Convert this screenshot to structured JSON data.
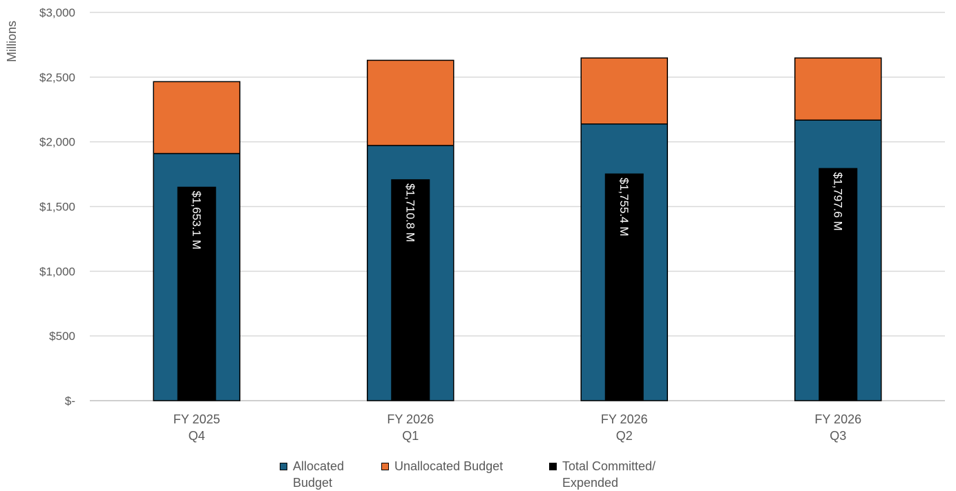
{
  "chart_data": {
    "type": "bar",
    "ylabel": "Millions",
    "ylim": [
      0,
      3000
    ],
    "yticks": [
      {
        "value": 0,
        "label": "$-"
      },
      {
        "value": 500,
        "label": "$500"
      },
      {
        "value": 1000,
        "label": "$1,000"
      },
      {
        "value": 1500,
        "label": "$1,500"
      },
      {
        "value": 2000,
        "label": "$2,000"
      },
      {
        "value": 2500,
        "label": "$2,500"
      },
      {
        "value": 3000,
        "label": "$3,000"
      }
    ],
    "categories": [
      [
        "FY 2025",
        "Q4"
      ],
      [
        "FY 2026",
        "Q1"
      ],
      [
        "FY 2026",
        "Q2"
      ],
      [
        "FY 2026",
        "Q3"
      ]
    ],
    "series": [
      {
        "name": "Allocated Budget",
        "legend_lines": [
          "Allocated",
          "Budget"
        ],
        "color": "#1a5f82",
        "stack": "budget",
        "values": [
          1910,
          1972,
          2138,
          2168
        ]
      },
      {
        "name": "Unallocated Budget",
        "legend_lines": [
          "Unallocated Budget"
        ],
        "color": "#e97132",
        "stack": "budget",
        "values": [
          555,
          658,
          510,
          480
        ]
      },
      {
        "name": "Total Committed/ Expended",
        "legend_lines": [
          "Total Committed/",
          "Expended"
        ],
        "color": "#000000",
        "stack": "overlay",
        "values": [
          1653.1,
          1710.8,
          1755.4,
          1797.6
        ]
      }
    ],
    "data_labels": [
      "$1,653.1 M",
      "$1,710.8 M",
      "$1,755.4 M",
      "$1,797.6 M"
    ],
    "grid": true,
    "legend_position": "bottom"
  }
}
